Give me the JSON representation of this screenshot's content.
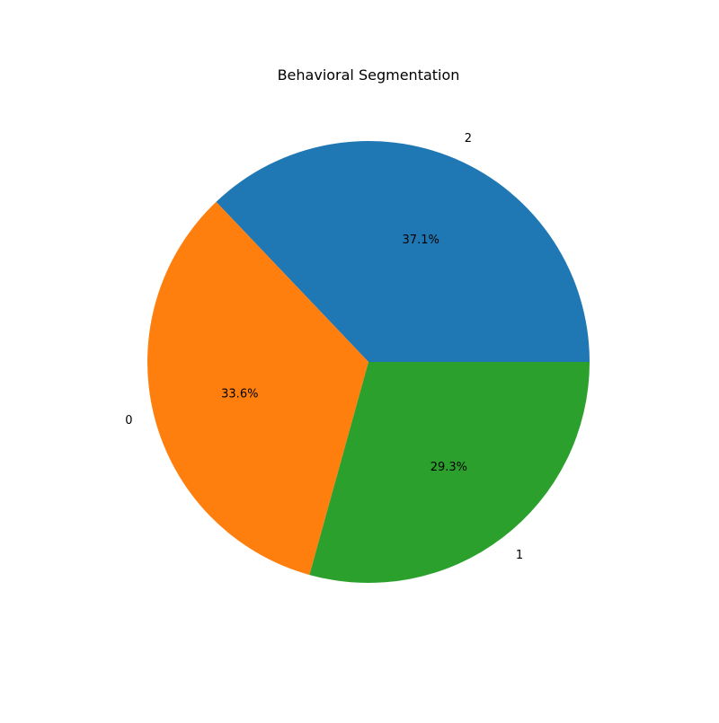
{
  "chart_data": {
    "type": "pie",
    "title": "Behavioral Segmentation",
    "categories": [
      "2",
      "0",
      "1"
    ],
    "values": [
      37.1,
      33.6,
      29.3
    ],
    "value_labels": [
      "37.1%",
      "33.6%",
      "29.3%"
    ],
    "colors": [
      "#1f77b4",
      "#ff7f0e",
      "#2ca02c"
    ],
    "start_angle_deg": 0,
    "direction": "counterclockwise",
    "legend": "none"
  }
}
